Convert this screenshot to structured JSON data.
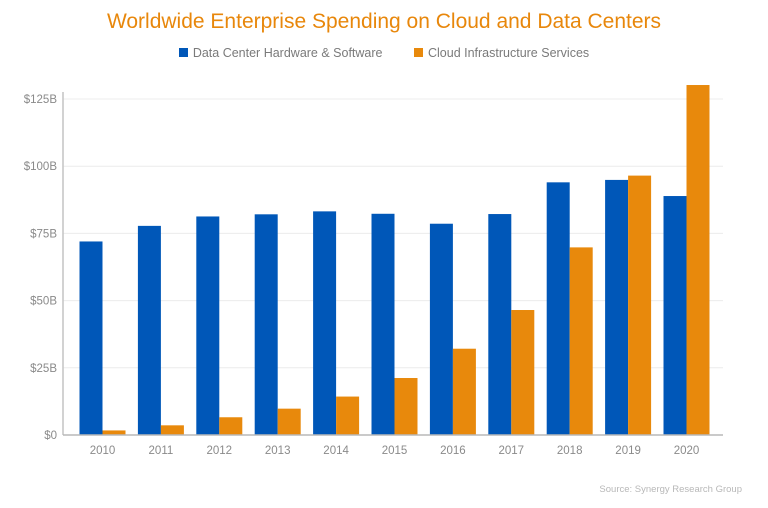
{
  "chart_data": {
    "type": "bar",
    "title": "Worldwide Enterprise Spending on Cloud and Data Centers",
    "categories": [
      "2010",
      "2011",
      "2012",
      "2013",
      "2014",
      "2015",
      "2016",
      "2017",
      "2018",
      "2019",
      "2020"
    ],
    "series": [
      {
        "name": "Data Center Hardware & Software",
        "color": "#0057b8",
        "values": [
          72.0,
          77.8,
          81.3,
          82.1,
          83.2,
          82.3,
          78.6,
          82.2,
          94.0,
          94.9,
          88.9
        ]
      },
      {
        "name": "Cloud Infrastructure Services",
        "color": "#e8890c",
        "values": [
          1.7,
          3.6,
          6.6,
          9.8,
          14.3,
          21.2,
          32.1,
          46.5,
          69.8,
          96.5,
          130.2
        ]
      }
    ],
    "xlabel": "",
    "ylabel": "",
    "ylim": [
      0,
      125
    ],
    "yticks": [
      0,
      25,
      50,
      75,
      100,
      125
    ],
    "ytick_labels": [
      "$0",
      "$25B",
      "$50B",
      "$75B",
      "$100B",
      "$125B"
    ],
    "grid": true,
    "legend_position": "top",
    "source": "Source: Synergy Research Group"
  }
}
